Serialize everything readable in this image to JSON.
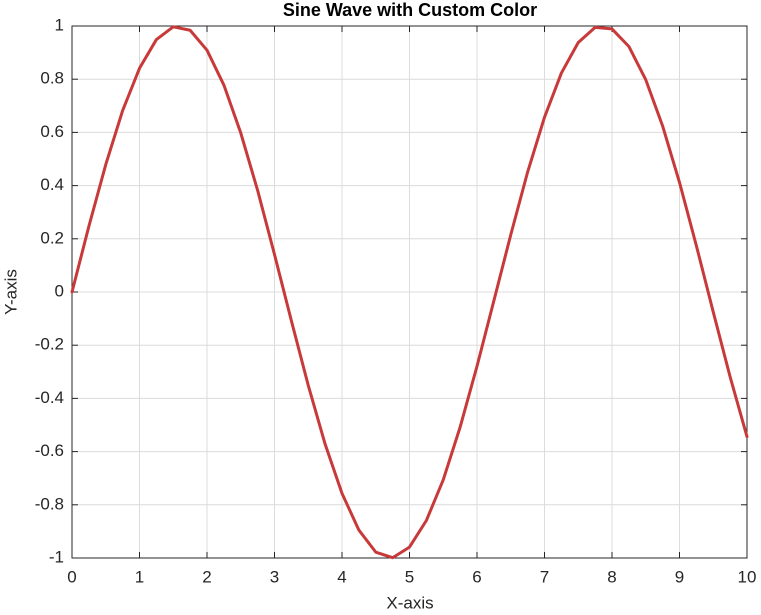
{
  "chart_data": {
    "type": "line",
    "title": "Sine Wave with Custom Color",
    "x_label": "X-axis",
    "y_label": "Y-axis",
    "x": [
      0,
      0.25,
      0.5,
      0.75,
      1,
      1.25,
      1.5,
      1.75,
      2,
      2.25,
      2.5,
      2.75,
      3,
      3.25,
      3.5,
      3.75,
      4,
      4.25,
      4.5,
      4.75,
      5,
      5.25,
      5.5,
      5.75,
      6,
      6.25,
      6.5,
      6.75,
      7,
      7.25,
      7.5,
      7.75,
      8,
      8.25,
      8.5,
      8.75,
      9,
      9.25,
      9.5,
      9.75,
      10
    ],
    "series": [
      {
        "color": "#c83a3a",
        "values": [
          0,
          0.247,
          0.479,
          0.682,
          0.841,
          0.949,
          0.997,
          0.984,
          0.909,
          0.778,
          0.598,
          0.382,
          0.141,
          -0.108,
          -0.351,
          -0.572,
          -0.757,
          -0.895,
          -0.978,
          -0.999,
          -0.959,
          -0.859,
          -0.706,
          -0.508,
          -0.279,
          -0.033,
          0.215,
          0.451,
          0.657,
          0.823,
          0.938,
          0.995,
          0.989,
          0.923,
          0.798,
          0.624,
          0.412,
          0.174,
          -0.075,
          -0.319,
          -0.544
        ]
      }
    ],
    "xlim": [
      0,
      10
    ],
    "ylim": [
      -1,
      1
    ],
    "xticks": [
      0,
      1,
      2,
      3,
      4,
      5,
      6,
      7,
      8,
      9,
      10
    ],
    "yticks": [
      -1,
      -0.8,
      -0.6,
      -0.4,
      -0.2,
      0,
      0.2,
      0.4,
      0.6,
      0.8,
      1
    ],
    "grid": true
  }
}
